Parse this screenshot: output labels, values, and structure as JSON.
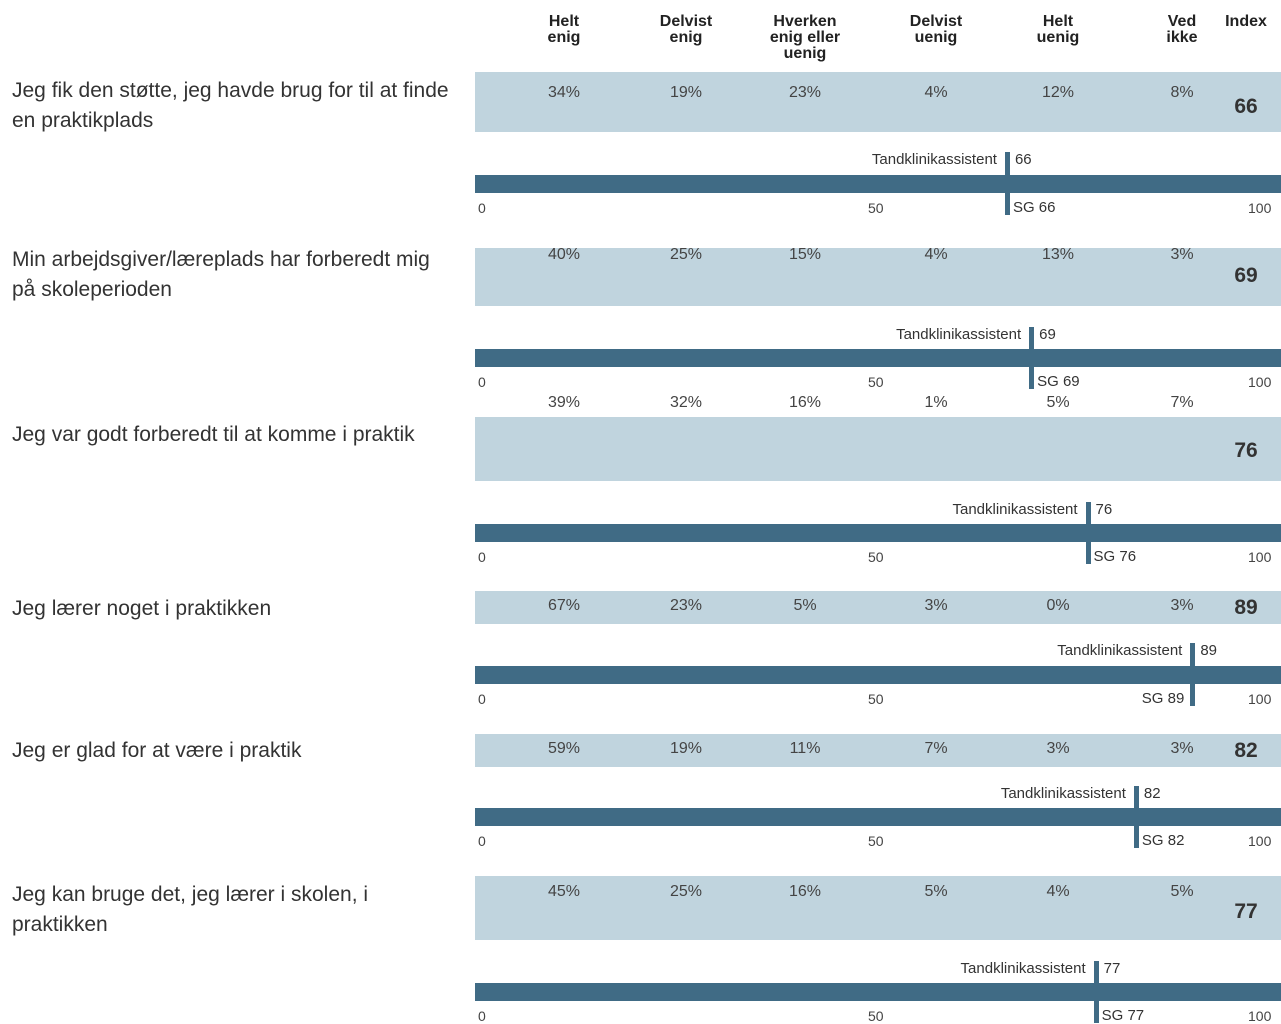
{
  "chart_data": {
    "type": "table",
    "headers": [
      "Helt\nenig",
      "Delvist\nenig",
      "Hverken\nenig eller\nuenig",
      "Delvist\nuenig",
      "Helt\nuenig",
      "Ved\nikke",
      "Index"
    ],
    "axis": {
      "min_label": "0",
      "mid_label": "50",
      "max_label": "100",
      "range": [
        0,
        100
      ]
    },
    "comparison_label": "Tandklinikassistent",
    "sg_prefix": "SG",
    "rows": [
      {
        "question": "Jeg fik den støtte, jeg havde brug for til at finde en praktikplads",
        "percents": [
          "34%",
          "19%",
          "23%",
          "4%",
          "12%",
          "8%"
        ],
        "index": 66,
        "value": 66,
        "sg": 66
      },
      {
        "question": "Min arbejdsgiver/læreplads har forberedt mig på skoleperioden",
        "percents": [
          "40%",
          "25%",
          "15%",
          "4%",
          "13%",
          "3%"
        ],
        "index": 69,
        "value": 69,
        "sg": 69
      },
      {
        "question": "Jeg var godt forberedt til at komme i praktik",
        "percents": [
          "39%",
          "32%",
          "16%",
          "1%",
          "5%",
          "7%"
        ],
        "index": 76,
        "value": 76,
        "sg": 76
      },
      {
        "question": "Jeg lærer noget i praktikken",
        "percents": [
          "67%",
          "23%",
          "5%",
          "3%",
          "0%",
          "3%"
        ],
        "index": 89,
        "value": 89,
        "sg": 89
      },
      {
        "question": "Jeg er glad for at være i praktik",
        "percents": [
          "59%",
          "19%",
          "11%",
          "7%",
          "3%",
          "3%"
        ],
        "index": 82,
        "value": 82,
        "sg": 82
      },
      {
        "question": "Jeg kan bruge det, jeg lærer i skolen, i praktikken",
        "percents": [
          "45%",
          "25%",
          "16%",
          "5%",
          "4%",
          "5%"
        ],
        "index": 77,
        "value": 77,
        "sg": 77
      }
    ]
  }
}
